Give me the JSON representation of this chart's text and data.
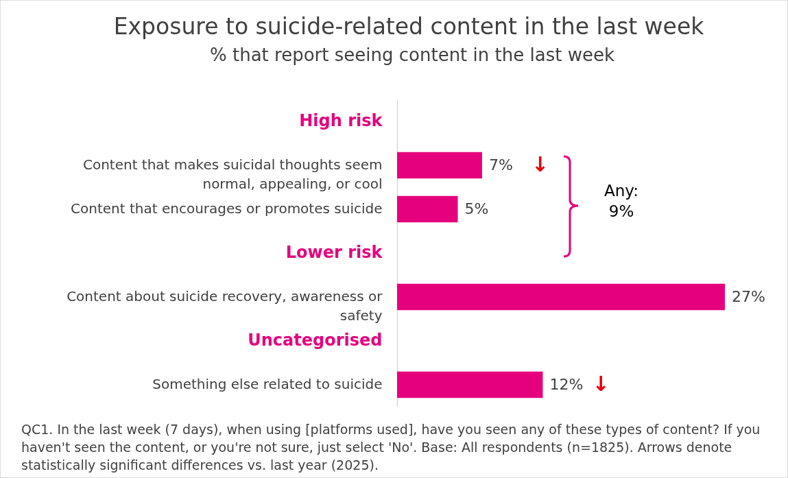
{
  "chart_data": {
    "type": "bar",
    "orientation": "horizontal",
    "title": "Exposure to suicide-related content in the last week",
    "subtitle": "% that report seeing content in the last week",
    "categories": [
      "High risk",
      "Content that makes suicidal thoughts seem normal, appealing, or cool",
      "Content that encourages or promotes suicide",
      "Lower risk",
      "Content about suicide recovery, awareness or safety",
      "Uncategorised",
      "Something else related to suicide"
    ],
    "values": [
      null,
      7,
      5,
      null,
      27,
      null,
      12
    ],
    "value_labels": [
      null,
      "7%",
      "5%",
      null,
      "27%",
      null,
      "12%"
    ],
    "color": "#e5007e",
    "annotations": [
      "Any: 9%",
      {
        "text": "↓",
        "x": 7,
        "y": "Content that makes suicidal thoughts seem normal, appealing, or cool"
      },
      {
        "text": "↓",
        "x": 12,
        "y": "Something else related to suicide"
      },
      "QC1. In the last week (7 days), when using [platforms used], have you seen any of these types of content? If you haven't seen the content, or you're not sure, just select 'No'. Base: All respondents (n=1825). Arrows denote statistically significant differences vs. last year (2025)."
    ]
  }
}
